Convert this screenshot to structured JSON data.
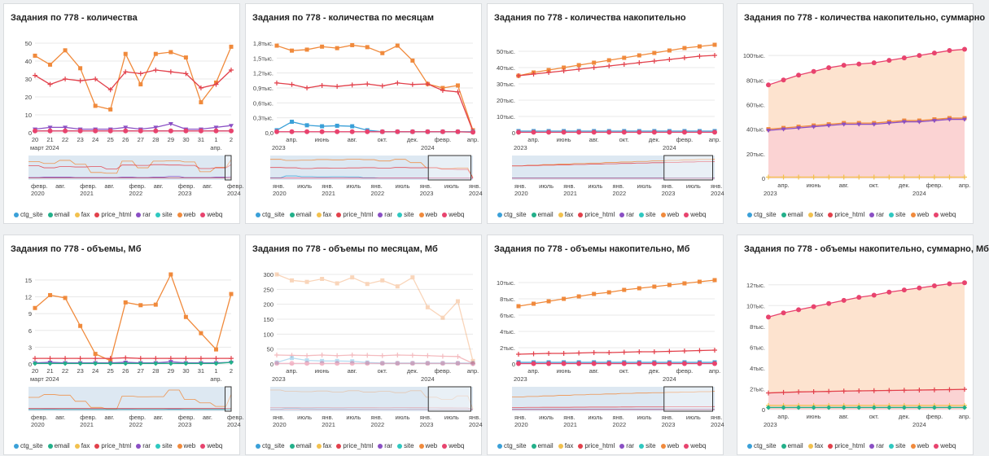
{
  "legend": [
    "ctg_site",
    "email",
    "fax",
    "price_html",
    "rar",
    "site",
    "web",
    "webq"
  ],
  "colors": {
    "ctg_site": "#3aa0d8",
    "email": "#22b08a",
    "fax": "#f2c14e",
    "price_html": "#e2404b",
    "rar": "#8a4fc4",
    "site": "#2ec8c0",
    "web": "#f08a3c",
    "webq": "#e8436e",
    "grid": "#e8e8e8",
    "navBg": "#dde8f2"
  },
  "chart_data": [
    {
      "type": "line",
      "title": "Задания по 778 - количества",
      "x": [
        "20",
        "21",
        "22",
        "23",
        "24",
        "25",
        "26",
        "27",
        "28",
        "29",
        "30",
        "31",
        "1",
        "2"
      ],
      "xsub": [
        {
          "i": 0,
          "t": "март 2024"
        },
        {
          "i": 12,
          "t": "апр."
        }
      ],
      "ylim": [
        0,
        50
      ],
      "yticks": [
        "0",
        "10",
        "20",
        "30",
        "40",
        "50"
      ],
      "series": [
        {
          "name": "web",
          "values": [
            43,
            38,
            46,
            36,
            15,
            13,
            44,
            27,
            44,
            45,
            42,
            17,
            28,
            48
          ]
        },
        {
          "name": "price_html",
          "values": [
            32,
            27,
            30,
            29,
            30,
            24,
            34,
            33,
            35,
            34,
            33,
            25,
            27,
            35
          ]
        },
        {
          "name": "rar",
          "values": [
            2,
            3,
            3,
            2,
            2,
            2,
            3,
            2,
            3,
            5,
            2,
            2,
            3,
            4
          ]
        },
        {
          "name": "email",
          "values": [
            1,
            1,
            1,
            1,
            1,
            1,
            1,
            1,
            1,
            1,
            1,
            1,
            1,
            1
          ]
        },
        {
          "name": "webq",
          "values": [
            1,
            1,
            1,
            1,
            1,
            1,
            1,
            1,
            1,
            1,
            1,
            1,
            1,
            1
          ]
        }
      ],
      "nav": {
        "ticks": [
          "февр.\n2020",
          "авг.",
          "февр.\n2021",
          "авг.",
          "февр.\n2022",
          "авг.",
          "февр.\n2023",
          "авг.",
          "февр.\n2024"
        ],
        "windowFrom": 0.97,
        "windowTo": 1.0
      }
    },
    {
      "type": "line",
      "title": "Задания по 778 - количества по месяцам",
      "x": [
        "",
        "апр.",
        "",
        "июнь",
        "",
        "авг.",
        "",
        "окт.",
        "",
        "дек.",
        "",
        "февр.",
        "",
        "апр."
      ],
      "xsub": [
        {
          "i": 0,
          "t": "2023"
        },
        {
          "i": 10,
          "t": "2024"
        }
      ],
      "ylim": [
        0,
        1.8
      ],
      "yticks": [
        "0,0",
        "0,3тыс.",
        "0,6тыс.",
        "0,9тыс.",
        "1,2тыс.",
        "1,5тыс.",
        "1,8тыс."
      ],
      "series": [
        {
          "name": "web",
          "values": [
            1.75,
            1.65,
            1.67,
            1.73,
            1.7,
            1.76,
            1.72,
            1.6,
            1.75,
            1.45,
            0.98,
            0.9,
            0.95,
            0.05
          ]
        },
        {
          "name": "price_html",
          "values": [
            1.0,
            0.97,
            0.9,
            0.95,
            0.93,
            0.96,
            0.98,
            0.94,
            1.0,
            0.97,
            0.98,
            0.85,
            0.82,
            0.03
          ]
        },
        {
          "name": "ctg_site",
          "values": [
            0.05,
            0.22,
            0.15,
            0.13,
            0.14,
            0.13,
            0.05,
            0.02,
            0.02,
            0.02,
            0.02,
            0.02,
            0.02,
            0.02
          ]
        },
        {
          "name": "webq",
          "values": [
            0.02,
            0.02,
            0.02,
            0.02,
            0.02,
            0.02,
            0.02,
            0.02,
            0.02,
            0.02,
            0.02,
            0.02,
            0.02,
            0.01
          ]
        }
      ],
      "nav": {
        "ticks": [
          "янв.\n2020",
          "июль",
          "янв.\n2021",
          "июль",
          "янв.\n2022",
          "июль",
          "янв.\n2023",
          "июль",
          "янв.\n2024"
        ],
        "windowFrom": 0.78,
        "windowTo": 0.99
      }
    },
    {
      "type": "line",
      "title": "Задания по 778 - количества накопительно",
      "x": [
        "",
        "апр.",
        "",
        "июнь",
        "",
        "авг.",
        "",
        "окт.",
        "",
        "дек.",
        "",
        "февр.",
        "",
        "апр."
      ],
      "xsub": [
        {
          "i": 0,
          "t": "2023"
        },
        {
          "i": 10,
          "t": "2024"
        }
      ],
      "ylim": [
        0,
        55
      ],
      "yticks": [
        "0",
        "10тыс.",
        "20тыс.",
        "30тыс.",
        "40тыс.",
        "50тыс."
      ],
      "series": [
        {
          "name": "web",
          "values": [
            35,
            37,
            38.5,
            40,
            41.5,
            43,
            44.5,
            46,
            47.5,
            49,
            50.5,
            52,
            53,
            54
          ]
        },
        {
          "name": "price_html",
          "values": [
            35,
            36,
            37,
            38,
            39,
            40,
            41,
            42,
            43,
            44,
            45,
            46,
            47,
            47.5
          ]
        },
        {
          "name": "ctg_site",
          "values": [
            1,
            1,
            1,
            1,
            1,
            1,
            1,
            1,
            1,
            1,
            1,
            1,
            1,
            1
          ]
        },
        {
          "name": "webq",
          "values": [
            0.3,
            0.3,
            0.3,
            0.3,
            0.3,
            0.3,
            0.3,
            0.3,
            0.3,
            0.3,
            0.3,
            0.3,
            0.3,
            0.3
          ]
        }
      ],
      "nav": {
        "ticks": [
          "янв.\n2020",
          "июль",
          "янв.\n2021",
          "июль",
          "янв.\n2022",
          "июль",
          "янв.\n2023",
          "июль",
          "янв.\n2024"
        ],
        "windowFrom": 0.75,
        "windowTo": 0.99
      }
    },
    {
      "type": "area",
      "title": "Задания по 778 - количества накопительно, суммарно",
      "x": [
        "",
        "апр.",
        "",
        "июнь",
        "",
        "авг.",
        "",
        "окт.",
        "",
        "дек.",
        "",
        "февр.",
        "",
        "апр."
      ],
      "xsub": [
        {
          "i": 0,
          "t": "2023"
        },
        {
          "i": 10,
          "t": "2024"
        }
      ],
      "ylim": [
        0,
        110
      ],
      "yticks": [
        "0",
        "20тыс.",
        "40тыс.",
        "60тыс.",
        "80тыс.",
        "100тыс."
      ],
      "series": [
        {
          "name": "webq",
          "values": [
            76,
            80,
            84,
            87,
            90,
            92,
            93,
            94,
            96,
            98,
            100,
            102,
            104,
            105
          ]
        },
        {
          "name": "web",
          "values": [
            40,
            41,
            42,
            43,
            44,
            45,
            45,
            45,
            46,
            47,
            47,
            48,
            49,
            49
          ]
        },
        {
          "name": "rar",
          "values": [
            39,
            40,
            41,
            42,
            43,
            44,
            44,
            44,
            45,
            46,
            46,
            47,
            48,
            48
          ]
        },
        {
          "name": "fax",
          "values": [
            1,
            1,
            1,
            1,
            1,
            1,
            1,
            1,
            1,
            1,
            1,
            1,
            1,
            1
          ]
        }
      ]
    },
    {
      "type": "line",
      "title": "Задания по 778 - объемы, Мб",
      "x": [
        "20",
        "21",
        "22",
        "23",
        "24",
        "25",
        "26",
        "27",
        "28",
        "29",
        "30",
        "31",
        "1",
        "2"
      ],
      "xsub": [
        {
          "i": 0,
          "t": "март 2024"
        },
        {
          "i": 12,
          "t": "апр."
        }
      ],
      "ylim": [
        0,
        16
      ],
      "yticks": [
        "0",
        "3",
        "6",
        "9",
        "12",
        "15"
      ],
      "series": [
        {
          "name": "web",
          "values": [
            10,
            12.3,
            11.8,
            6.8,
            1.8,
            0.6,
            11,
            10.5,
            10.6,
            16,
            8.4,
            5.5,
            2.6,
            12.5
          ]
        },
        {
          "name": "price_html",
          "values": [
            1,
            1,
            1,
            1,
            1,
            1,
            1.1,
            1,
            1,
            1,
            1,
            1,
            1,
            1
          ]
        },
        {
          "name": "rar",
          "values": [
            0.2,
            0.3,
            0.2,
            0.2,
            0.2,
            0.2,
            0.3,
            0.2,
            0.2,
            0.4,
            0.2,
            0.2,
            0.2,
            0.3
          ]
        },
        {
          "name": "email",
          "values": [
            0.1,
            0.1,
            0.1,
            0.1,
            0.1,
            0.1,
            0.1,
            0.1,
            0.1,
            0.1,
            0.1,
            0.1,
            0.1,
            0.3
          ]
        }
      ],
      "nav": {
        "ticks": [
          "февр.\n2020",
          "авг.",
          "февр.\n2021",
          "авг.",
          "февр.\n2022",
          "авг.",
          "февр.\n2023",
          "авг.",
          "февр.\n2024"
        ],
        "windowFrom": 0.97,
        "windowTo": 1.0
      }
    },
    {
      "type": "line",
      "title": "Задания по 778 - объемы по месяцам, Мб",
      "faded": true,
      "x": [
        "",
        "апр.",
        "",
        "июнь",
        "",
        "авг.",
        "",
        "окт.",
        "",
        "дек.",
        "",
        "февр.",
        "",
        "апр."
      ],
      "xsub": [
        {
          "i": 0,
          "t": "2023"
        },
        {
          "i": 10,
          "t": "2024"
        }
      ],
      "ylim": [
        0,
        300
      ],
      "yticks": [
        "0",
        "50",
        "100",
        "150",
        "200",
        "250",
        "300"
      ],
      "series": [
        {
          "name": "web",
          "values": [
            300,
            280,
            275,
            285,
            270,
            290,
            268,
            280,
            260,
            290,
            190,
            155,
            210,
            10
          ]
        },
        {
          "name": "price_html",
          "values": [
            30,
            29,
            28,
            30,
            28,
            30,
            29,
            28,
            30,
            29,
            28,
            26,
            25,
            2
          ]
        },
        {
          "name": "ctg_site",
          "values": [
            5,
            20,
            12,
            10,
            10,
            9,
            5,
            3,
            3,
            3,
            3,
            3,
            3,
            3
          ]
        },
        {
          "name": "webq",
          "values": [
            2,
            2,
            2,
            2,
            2,
            2,
            2,
            2,
            2,
            2,
            2,
            2,
            2,
            1
          ]
        }
      ],
      "nav": {
        "ticks": [
          "янв.\n2020",
          "июль",
          "янв.\n2021",
          "июль",
          "янв.\n2022",
          "июль",
          "янв.\n2023",
          "июль",
          "янв.\n2024"
        ],
        "windowFrom": 0.78,
        "windowTo": 0.99
      }
    },
    {
      "type": "line",
      "title": "Задания по 778 - объемы накопительно, Мб",
      "x": [
        "",
        "апр.",
        "",
        "июнь",
        "",
        "авг.",
        "",
        "окт.",
        "",
        "дек.",
        "",
        "февр.",
        "",
        "апр."
      ],
      "xsub": [
        {
          "i": 0,
          "t": "2023"
        },
        {
          "i": 10,
          "t": "2024"
        }
      ],
      "ylim": [
        0,
        11
      ],
      "yticks": [
        "0",
        "2тыс.",
        "4тыс.",
        "6тыс.",
        "8тыс.",
        "10тыс."
      ],
      "series": [
        {
          "name": "web",
          "values": [
            7.1,
            7.4,
            7.7,
            8.0,
            8.3,
            8.6,
            8.8,
            9.1,
            9.3,
            9.5,
            9.7,
            9.9,
            10.1,
            10.3
          ]
        },
        {
          "name": "price_html",
          "values": [
            1.2,
            1.25,
            1.3,
            1.3,
            1.35,
            1.4,
            1.4,
            1.45,
            1.5,
            1.5,
            1.55,
            1.6,
            1.65,
            1.7
          ]
        },
        {
          "name": "ctg_site",
          "values": [
            0.2,
            0.2,
            0.2,
            0.2,
            0.2,
            0.2,
            0.2,
            0.2,
            0.2,
            0.2,
            0.2,
            0.2,
            0.2,
            0.2
          ]
        },
        {
          "name": "webq",
          "values": [
            0.05,
            0.05,
            0.05,
            0.05,
            0.05,
            0.05,
            0.05,
            0.05,
            0.05,
            0.05,
            0.05,
            0.05,
            0.05,
            0.05
          ]
        }
      ],
      "nav": {
        "ticks": [
          "янв.\n2020",
          "июль",
          "янв.\n2021",
          "июль",
          "янв.\n2022",
          "июль",
          "янв.\n2023",
          "июль",
          "янв.\n2024"
        ],
        "windowFrom": 0.75,
        "windowTo": 0.99
      }
    },
    {
      "type": "area",
      "title": "Задания по 778 - объемы накопительно, суммарно, Мб",
      "x": [
        "",
        "апр.",
        "",
        "июнь",
        "",
        "авг.",
        "",
        "окт.",
        "",
        "дек.",
        "",
        "февр.",
        "",
        "апр."
      ],
      "xsub": [
        {
          "i": 0,
          "t": "2023"
        },
        {
          "i": 10,
          "t": "2024"
        }
      ],
      "ylim": [
        0,
        13
      ],
      "yticks": [
        "0",
        "2тыс.",
        "4тыс.",
        "6тыс.",
        "8тыс.",
        "10тыс.",
        "12тыс."
      ],
      "series": [
        {
          "name": "webq",
          "values": [
            8.9,
            9.3,
            9.6,
            9.9,
            10.2,
            10.5,
            10.8,
            11.0,
            11.3,
            11.5,
            11.7,
            11.9,
            12.1,
            12.2
          ]
        },
        {
          "name": "price_html",
          "values": [
            1.6,
            1.65,
            1.7,
            1.72,
            1.75,
            1.78,
            1.8,
            1.82,
            1.84,
            1.86,
            1.88,
            1.9,
            1.92,
            1.95
          ]
        },
        {
          "name": "fax",
          "values": [
            0.4,
            0.4,
            0.4,
            0.4,
            0.4,
            0.4,
            0.4,
            0.4,
            0.4,
            0.4,
            0.4,
            0.4,
            0.4,
            0.4
          ]
        },
        {
          "name": "email",
          "values": [
            0.2,
            0.2,
            0.2,
            0.2,
            0.2,
            0.2,
            0.2,
            0.2,
            0.2,
            0.2,
            0.2,
            0.2,
            0.2,
            0.2
          ]
        }
      ]
    }
  ]
}
